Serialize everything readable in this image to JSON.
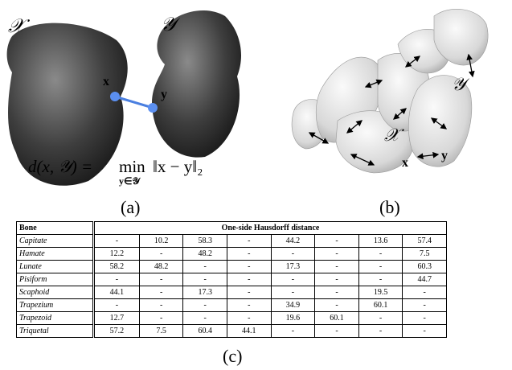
{
  "figure_a": {
    "labels": [
      "𝒳",
      "𝒴",
      "x",
      "y"
    ],
    "formula": {
      "lhs": "d(x, 𝒴) =",
      "op": "min",
      "sub": "y∈𝒴",
      "rhs": "‖x − y‖₂"
    },
    "caption": "(a)"
  },
  "figure_b": {
    "labels": [
      "𝒳",
      "𝒴",
      "x",
      "y"
    ],
    "caption": "(b)"
  },
  "table": {
    "header": [
      "Bone",
      "One-side Hausdorff distance"
    ],
    "rows": [
      [
        "Capitate",
        "-",
        10.2,
        58.3,
        "-",
        44.2,
        "-",
        13.6,
        57.4
      ],
      [
        "Hamate",
        12.2,
        "-",
        48.2,
        "-",
        "-",
        "-",
        "-",
        7.5
      ],
      [
        "Lunate",
        58.2,
        48.2,
        "-",
        "-",
        17.3,
        "-",
        "-",
        60.3
      ],
      [
        "Pisiform",
        "-",
        "-",
        "-",
        "-",
        "-",
        "-",
        "-",
        44.7
      ],
      [
        "Scaphoid",
        44.1,
        "-",
        17.3,
        "-",
        "-",
        "-",
        19.5,
        "-"
      ],
      [
        "Trapezium",
        "-",
        "-",
        "-",
        "-",
        34.9,
        "-",
        60.1,
        "-"
      ],
      [
        "Trapezoid",
        12.7,
        "-",
        "-",
        "-",
        19.6,
        60.1,
        "-",
        "-"
      ],
      [
        "Triquetal",
        57.2,
        7.5,
        60.4,
        44.1,
        "-",
        "-",
        "-",
        "-"
      ]
    ],
    "caption": "(c)"
  }
}
